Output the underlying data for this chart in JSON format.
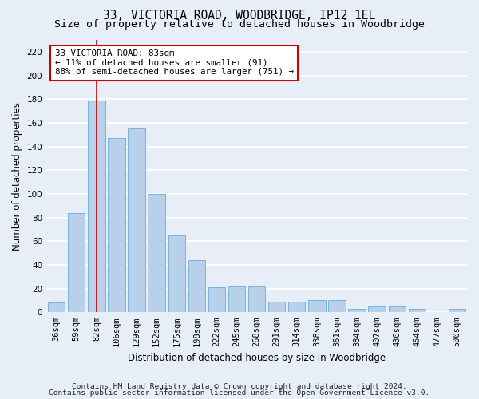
{
  "title": "33, VICTORIA ROAD, WOODBRIDGE, IP12 1EL",
  "subtitle": "Size of property relative to detached houses in Woodbridge",
  "xlabel": "Distribution of detached houses by size in Woodbridge",
  "ylabel": "Number of detached properties",
  "footnote1": "Contains HM Land Registry data © Crown copyright and database right 2024.",
  "footnote2": "Contains public sector information licensed under the Open Government Licence v3.0.",
  "categories": [
    "36sqm",
    "59sqm",
    "82sqm",
    "106sqm",
    "129sqm",
    "152sqm",
    "175sqm",
    "198sqm",
    "222sqm",
    "245sqm",
    "268sqm",
    "291sqm",
    "314sqm",
    "338sqm",
    "361sqm",
    "384sqm",
    "407sqm",
    "430sqm",
    "454sqm",
    "477sqm",
    "500sqm"
  ],
  "values": [
    8,
    84,
    179,
    147,
    155,
    100,
    65,
    44,
    21,
    22,
    22,
    9,
    9,
    10,
    10,
    3,
    5,
    5,
    3,
    0,
    3
  ],
  "bar_color": "#b8d0ea",
  "bar_edge_color": "#6aaad4",
  "vline_x_index": 2,
  "vline_color": "#cc0000",
  "annotation_text": "33 VICTORIA ROAD: 83sqm\n← 11% of detached houses are smaller (91)\n88% of semi-detached houses are larger (751) →",
  "annotation_box_facecolor": "#ffffff",
  "annotation_box_edgecolor": "#cc0000",
  "ylim": [
    0,
    230
  ],
  "yticks": [
    0,
    20,
    40,
    60,
    80,
    100,
    120,
    140,
    160,
    180,
    200,
    220
  ],
  "background_color": "#e8eef8",
  "grid_color": "#ffffff",
  "title_fontsize": 10.5,
  "subtitle_fontsize": 9.5,
  "axis_label_fontsize": 8.5,
  "tick_fontsize": 7.5,
  "annotation_fontsize": 7.8,
  "footnote_fontsize": 6.8
}
